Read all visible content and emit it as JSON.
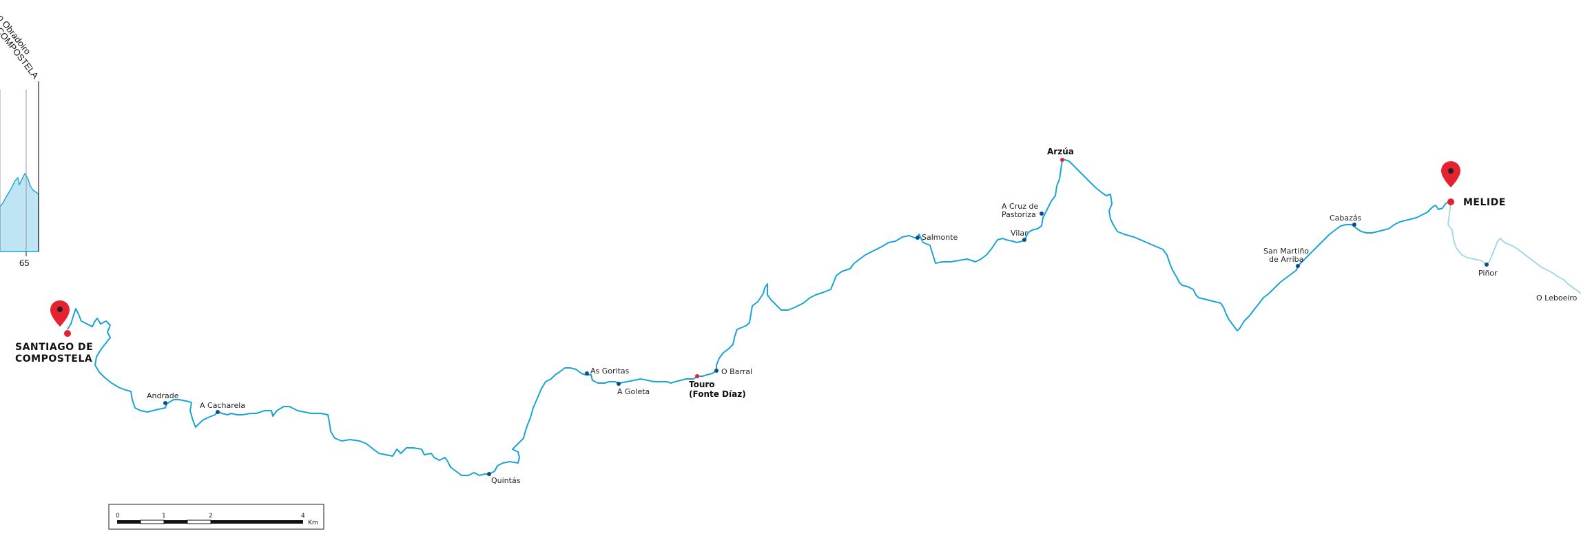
{
  "profile": {
    "labels": [
      "o Obradoiro",
      "COMPOSTELA"
    ],
    "km_label": "65"
  },
  "places": {
    "santiago": [
      "SANTIAGO DE",
      "COMPOSTELA"
    ],
    "andrade": "Andrade",
    "cacharela": "A Cacharela",
    "quintas": "Quintás",
    "goritas": "As Goritas",
    "goleta": "A Goleta",
    "touro": [
      "Touro",
      "(Fonte Díaz)"
    ],
    "barral": "O Barral",
    "salmonte": "Salmonte",
    "vilar": "Vilar",
    "cruz": [
      "A Cruz de",
      "Pastoriza"
    ],
    "arzua": "Arzúa",
    "martino": [
      "San Martiño",
      "de Arriba"
    ],
    "cabazas": "Cabazás",
    "melide": "MELIDE",
    "pinor": "Piñor",
    "leboeiro": "O Leboeiro"
  },
  "scale": {
    "ticks": [
      "0",
      "1",
      "2",
      "4"
    ],
    "unit": "Km"
  },
  "colors": {
    "route": "#1aa3d6",
    "route_faded": "#9fd4ec",
    "point": "#0a4d8c",
    "marker": "#e52330",
    "profile_fill": "#bfe5f5"
  }
}
